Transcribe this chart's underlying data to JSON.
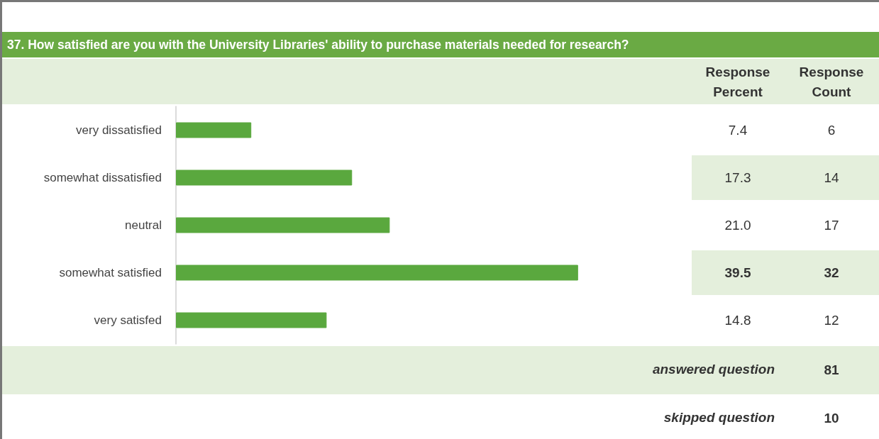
{
  "chart_data": {
    "type": "bar",
    "orientation": "horizontal",
    "title": "37.  How satisfied are you with the University Libraries' ability to purchase materials needed for research?",
    "categories": [
      "very dissatisfied",
      "somewhat dissatisfied",
      "neutral",
      "somewhat satisfied",
      "very satisfed"
    ],
    "values": [
      7.4,
      17.3,
      21.0,
      39.5,
      14.8
    ],
    "value_labels": [
      "7.4",
      "17.3",
      "21.0",
      "39.5",
      "14.8"
    ],
    "color": "#5aa83e",
    "tick_labels": "y",
    "grid": false,
    "annotations": [
      "Response Percent",
      "Response Count",
      "6",
      "14",
      "17",
      "32",
      "12",
      "answered question",
      "81",
      "skipped question",
      "10"
    ]
  }
}
